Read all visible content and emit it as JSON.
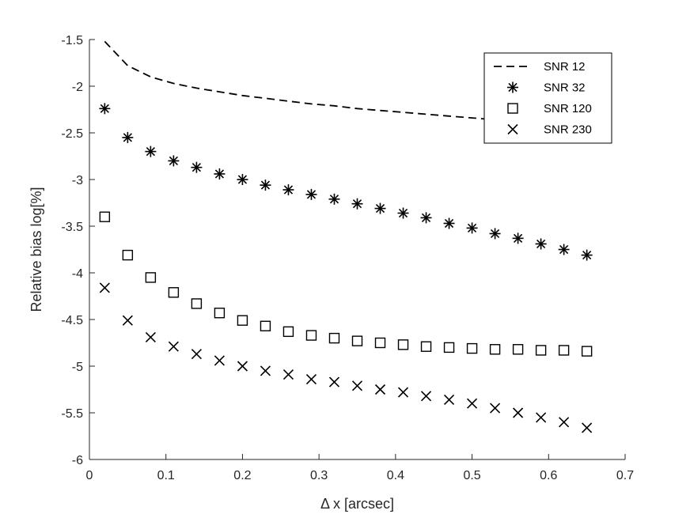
{
  "chart_data": {
    "type": "scatter",
    "xlabel": "Δ x [arcsec]",
    "ylabel": "Relative bias log[%]",
    "xlim": [
      0,
      0.7
    ],
    "ylim": [
      -6,
      -1.5
    ],
    "xticks": [
      0,
      0.1,
      0.2,
      0.3,
      0.4,
      0.5,
      0.6,
      0.7
    ],
    "xtick_labels": [
      "0",
      "0.1",
      "0.2",
      "0.3",
      "0.4",
      "0.5",
      "0.6",
      "0.7"
    ],
    "yticks": [
      -6,
      -5.5,
      -5,
      -4.5,
      -4,
      -3.5,
      -3,
      -2.5,
      -2,
      -1.5
    ],
    "ytick_labels": [
      "-6",
      "-5.5",
      "-5",
      "-4.5",
      "-4",
      "-3.5",
      "-3",
      "-2.5",
      "-2",
      "-1.5"
    ],
    "grid": false,
    "legend_position": "top-right",
    "x": [
      0.02,
      0.05,
      0.08,
      0.11,
      0.14,
      0.17,
      0.2,
      0.23,
      0.26,
      0.29,
      0.32,
      0.35,
      0.38,
      0.41,
      0.44,
      0.47,
      0.5,
      0.53,
      0.56,
      0.59,
      0.62,
      0.65
    ],
    "series": [
      {
        "name": "SNR 12",
        "style": "dashed-line",
        "values": [
          -1.52,
          -1.78,
          -1.9,
          -1.97,
          -2.02,
          -2.06,
          -2.1,
          -2.13,
          -2.16,
          -2.19,
          -2.21,
          -2.24,
          -2.26,
          -2.28,
          -2.3,
          -2.32,
          -2.34,
          -2.36,
          -2.38,
          -2.4,
          -2.42,
          -2.44
        ]
      },
      {
        "name": "SNR 32",
        "style": "asterisk",
        "values": [
          -2.24,
          -2.55,
          -2.7,
          -2.8,
          -2.87,
          -2.94,
          -3.0,
          -3.06,
          -3.11,
          -3.16,
          -3.21,
          -3.26,
          -3.31,
          -3.36,
          -3.41,
          -3.47,
          -3.52,
          -3.58,
          -3.63,
          -3.69,
          -3.75,
          -3.81
        ]
      },
      {
        "name": "SNR 120",
        "style": "square",
        "values": [
          -3.4,
          -3.81,
          -4.05,
          -4.21,
          -4.33,
          -4.43,
          -4.51,
          -4.57,
          -4.63,
          -4.67,
          -4.7,
          -4.73,
          -4.75,
          -4.77,
          -4.79,
          -4.8,
          -4.81,
          -4.82,
          -4.82,
          -4.83,
          -4.83,
          -4.84
        ]
      },
      {
        "name": "SNR 230",
        "style": "cross",
        "values": [
          -4.16,
          -4.51,
          -4.69,
          -4.79,
          -4.87,
          -4.94,
          -5.0,
          -5.05,
          -5.09,
          -5.14,
          -5.17,
          -5.21,
          -5.25,
          -5.28,
          -5.32,
          -5.36,
          -5.4,
          -5.45,
          -5.5,
          -5.55,
          -5.6,
          -5.66
        ]
      }
    ]
  }
}
